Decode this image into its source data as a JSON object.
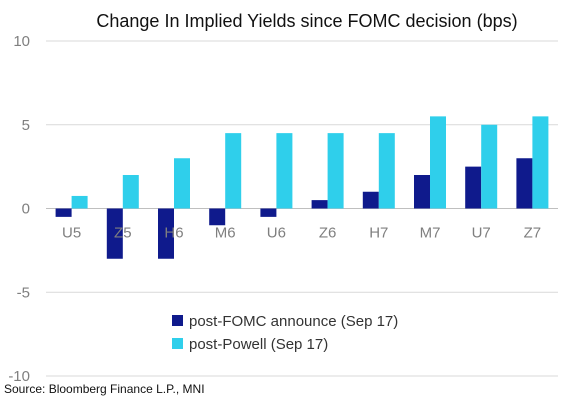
{
  "chart_data": {
    "type": "bar",
    "title": "Change In Implied Yields since FOMC decision (bps)",
    "categories": [
      "U5",
      "Z5",
      "H6",
      "M6",
      "U6",
      "Z6",
      "H7",
      "M7",
      "U7",
      "Z7"
    ],
    "series": [
      {
        "name": "post-FOMC announce (Sep 17)",
        "color": "#0f1a8c",
        "values": [
          -0.5,
          -3,
          -3,
          -1,
          -0.5,
          0.5,
          1,
          2,
          2.5,
          3
        ]
      },
      {
        "name": "post-Powell (Sep 17)",
        "color": "#2fcfeb",
        "values": [
          0.75,
          2,
          3,
          4.5,
          4.5,
          4.5,
          4.5,
          5.5,
          5,
          5.5
        ]
      }
    ],
    "yticks": [
      "10",
      "5",
      "0",
      "-5",
      "-10"
    ],
    "ylim": [
      -10,
      10
    ],
    "grid": true,
    "legend_position": "bottom-center",
    "source": "Source: Bloomberg Finance L.P., MNI"
  }
}
